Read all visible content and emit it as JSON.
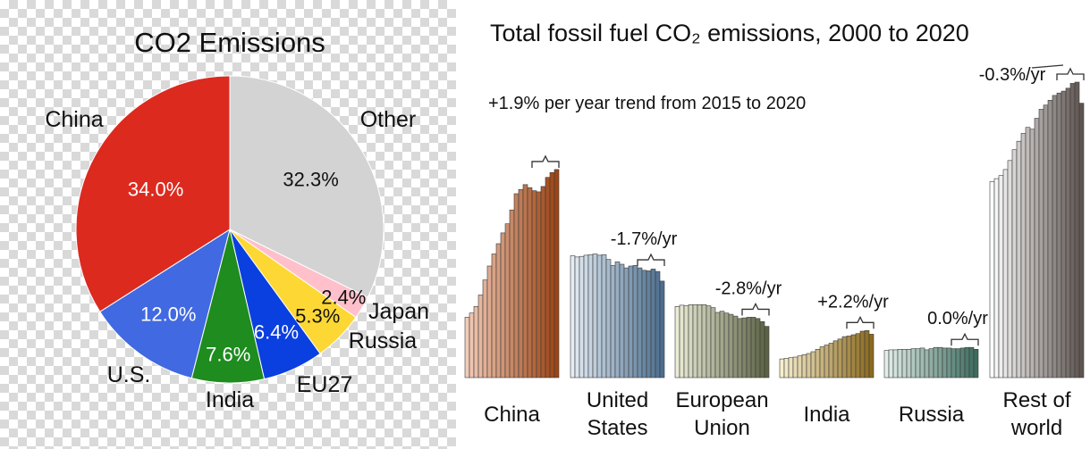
{
  "chart_data": [
    {
      "type": "pie",
      "title": "CO2 Emissions",
      "slices": [
        {
          "name": "Other",
          "value": 32.3,
          "label": "32.3%",
          "color": "#d3d3d3",
          "label_color": "#111111"
        },
        {
          "name": "Japan",
          "value": 2.4,
          "label": "2.4%",
          "color": "#ffc0cb",
          "label_color": "#111111"
        },
        {
          "name": "Russia",
          "value": 5.3,
          "label": "5.3%",
          "color": "#fdd835",
          "label_color": "#111111"
        },
        {
          "name": "EU27",
          "value": 6.4,
          "label": "6.4%",
          "color": "#0a3fe0",
          "label_color": "#ffffff"
        },
        {
          "name": "India",
          "value": 7.6,
          "label": "7.6%",
          "color": "#1e8c1e",
          "label_color": "#ffffff"
        },
        {
          "name": "U.S.",
          "value": 12.0,
          "label": "12.0%",
          "color": "#4169e1",
          "label_color": "#ffffff"
        },
        {
          "name": "China",
          "value": 34.0,
          "label": "34.0%",
          "color": "#dc2a1f",
          "label_color": "#ffffff"
        }
      ]
    },
    {
      "type": "bar",
      "title": "Total fossil fuel CO₂ emissions, 2000 to 2020",
      "x": {
        "start": 2000,
        "end": 2020
      },
      "annotation_main": "+1.9% per year trend from 2015 to 2020",
      "groups": [
        {
          "name": "China",
          "label_lines": [
            "China"
          ],
          "color_start": "#f2cbb7",
          "color_end": "#9c4515",
          "trend": "",
          "values": [
            1.0,
            1.07,
            1.18,
            1.37,
            1.62,
            1.85,
            2.05,
            2.22,
            2.4,
            2.55,
            2.78,
            3.05,
            3.12,
            3.2,
            3.15,
            3.1,
            3.08,
            3.17,
            3.32,
            3.4,
            3.45
          ]
        },
        {
          "name": "United States",
          "label_lines": [
            "United",
            "States"
          ],
          "color_start": "#e4ecf4",
          "color_end": "#4b6e8f",
          "trend": "-1.7%/yr",
          "values": [
            2.02,
            2.0,
            2.01,
            2.03,
            2.04,
            2.05,
            2.03,
            2.04,
            1.96,
            1.86,
            1.92,
            1.88,
            1.82,
            1.85,
            1.86,
            1.82,
            1.78,
            1.77,
            1.8,
            1.76,
            1.6
          ]
        },
        {
          "name": "European Union",
          "label_lines": [
            "European",
            "Union"
          ],
          "color_start": "#eaecd6",
          "color_end": "#5b6244",
          "trend": "-2.8%/yr",
          "values": [
            1.18,
            1.2,
            1.19,
            1.21,
            1.21,
            1.21,
            1.21,
            1.19,
            1.16,
            1.08,
            1.1,
            1.07,
            1.05,
            1.02,
            0.98,
            0.99,
            1.0,
            1.0,
            0.98,
            0.93,
            0.85
          ]
        },
        {
          "name": "India",
          "label_lines": [
            "India"
          ],
          "color_start": "#f6efcf",
          "color_end": "#8c6a1e",
          "trend": "+2.2%/yr",
          "values": [
            0.31,
            0.32,
            0.33,
            0.34,
            0.36,
            0.38,
            0.4,
            0.43,
            0.47,
            0.51,
            0.54,
            0.57,
            0.61,
            0.64,
            0.68,
            0.69,
            0.71,
            0.73,
            0.77,
            0.78,
            0.72
          ]
        },
        {
          "name": "Russia",
          "label_lines": [
            "Russia"
          ],
          "color_start": "#e2efea",
          "color_end": "#3d6c5e",
          "trend": "0.0%/yr",
          "values": [
            0.45,
            0.46,
            0.46,
            0.47,
            0.47,
            0.47,
            0.48,
            0.48,
            0.49,
            0.46,
            0.48,
            0.5,
            0.5,
            0.49,
            0.49,
            0.48,
            0.48,
            0.49,
            0.5,
            0.5,
            0.47
          ]
        },
        {
          "name": "Rest of world",
          "label_lines": [
            "Rest of",
            "world"
          ],
          "color_start": "#ffffff",
          "color_end": "#5e5450",
          "trend": "-0.3%/yr",
          "values": [
            3.25,
            3.3,
            3.35,
            3.45,
            3.6,
            3.78,
            3.92,
            4.05,
            4.15,
            4.12,
            4.3,
            4.45,
            4.52,
            4.6,
            4.68,
            4.72,
            4.75,
            4.8,
            4.88,
            4.9,
            4.55
          ]
        }
      ]
    }
  ]
}
